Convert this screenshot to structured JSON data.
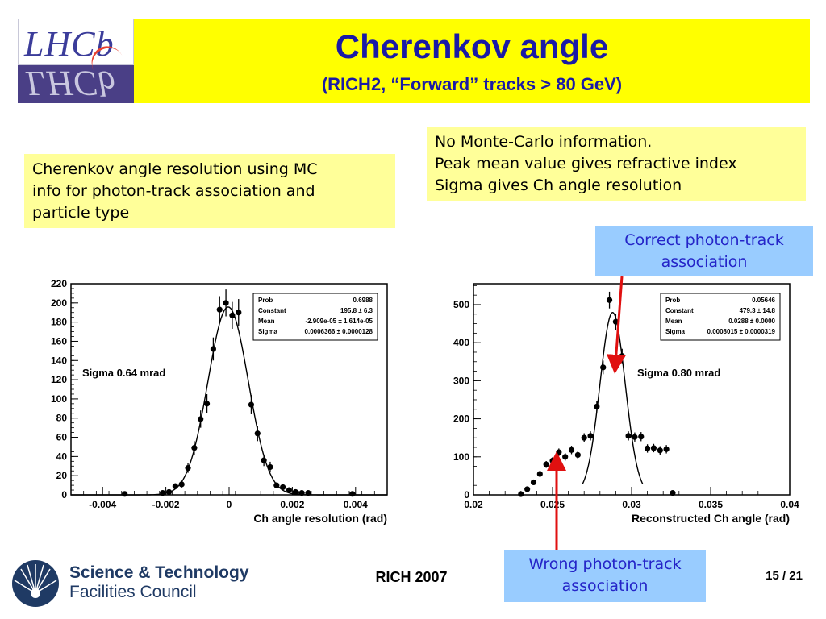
{
  "header": {
    "title": "Cherenkov angle",
    "subtitle": "(RICH2, “Forward” tracks > 80 GeV)",
    "logo_text": "LHCb"
  },
  "notes": {
    "left": [
      "Cherenkov angle resolution using MC",
      "info for photon-track association and",
      "particle type"
    ],
    "right": [
      "No Monte-Carlo information.",
      "Peak mean value gives refractive index",
      "Sigma gives Ch angle resolution"
    ]
  },
  "callouts": {
    "correct": [
      "Correct photon-track",
      "association"
    ],
    "wrong": [
      "Wrong photon-track",
      "association"
    ]
  },
  "footer": {
    "conference": "RICH 2007",
    "page": "15 / 21",
    "org_line1": "Science & Technology",
    "org_line2": "Facilities Council"
  },
  "colors": {
    "header_bg": "#ffff00",
    "title": "#1a1aa6",
    "note_bg": "#ffff99",
    "callout_bg": "#99ccff",
    "callout_text": "#2424c8",
    "arrow": "#e01010"
  },
  "chart_data": [
    {
      "type": "scatter",
      "xlabel": "Ch angle resolution (rad)",
      "ylabel": "",
      "xlim": [
        -0.005,
        0.005
      ],
      "ylim": [
        0,
        220
      ],
      "xticks": [
        -0.004,
        -0.002,
        0,
        0.002,
        0.004
      ],
      "xtick_labels": [
        "-0.004",
        "-0.002",
        "0",
        "0.002",
        "0.004"
      ],
      "yticks": [
        0,
        20,
        40,
        60,
        80,
        100,
        120,
        140,
        160,
        180,
        200,
        220
      ],
      "annotation": "Sigma 0.64 mrad",
      "stats": [
        {
          "label": "Prob",
          "value": "0.6988"
        },
        {
          "label": "Constant",
          "value": "195.8 ± 6.3"
        },
        {
          "label": "Mean",
          "value": "-2.909e-05 ± 1.614e-05"
        },
        {
          "label": "Sigma",
          "value": "0.0006366 ± 0.0000128"
        }
      ],
      "fit": {
        "constant": 195.8,
        "mean": -2.909e-05,
        "sigma": 0.0006366
      },
      "points": [
        {
          "x": -0.0033,
          "y": 1,
          "err": 1
        },
        {
          "x": -0.0021,
          "y": 2,
          "err": 1.5
        },
        {
          "x": -0.0019,
          "y": 3,
          "err": 1.7
        },
        {
          "x": -0.0017,
          "y": 9,
          "err": 3
        },
        {
          "x": -0.0015,
          "y": 11,
          "err": 3.3
        },
        {
          "x": -0.0013,
          "y": 28,
          "err": 5
        },
        {
          "x": -0.0011,
          "y": 49,
          "err": 7
        },
        {
          "x": -0.0009,
          "y": 79,
          "err": 9
        },
        {
          "x": -0.0007,
          "y": 95,
          "err": 10
        },
        {
          "x": -0.0005,
          "y": 152,
          "err": 12
        },
        {
          "x": -0.0003,
          "y": 193,
          "err": 14
        },
        {
          "x": -0.0001,
          "y": 200,
          "err": 14
        },
        {
          "x": 0.0001,
          "y": 187,
          "err": 14
        },
        {
          "x": 0.0003,
          "y": 190,
          "err": 14
        },
        {
          "x": 0.0007,
          "y": 94,
          "err": 10
        },
        {
          "x": 0.0009,
          "y": 64,
          "err": 8
        },
        {
          "x": 0.0011,
          "y": 36,
          "err": 6
        },
        {
          "x": 0.0013,
          "y": 29,
          "err": 5.5
        },
        {
          "x": 0.0015,
          "y": 10,
          "err": 3
        },
        {
          "x": 0.0017,
          "y": 8,
          "err": 3
        },
        {
          "x": 0.0019,
          "y": 5,
          "err": 2
        },
        {
          "x": 0.0021,
          "y": 3,
          "err": 1.7
        },
        {
          "x": 0.0023,
          "y": 2,
          "err": 1.5
        },
        {
          "x": 0.0025,
          "y": 2,
          "err": 1.5
        },
        {
          "x": 0.0039,
          "y": 1,
          "err": 1
        }
      ]
    },
    {
      "type": "scatter",
      "xlabel": "Reconstructed Ch angle (rad)",
      "ylabel": "",
      "xlim": [
        0.02,
        0.04
      ],
      "ylim": [
        0,
        555
      ],
      "xticks": [
        0.02,
        0.025,
        0.03,
        0.035,
        0.04
      ],
      "xtick_labels": [
        "0.02",
        "0.025",
        "0.03",
        "0.035",
        "0.04"
      ],
      "yticks": [
        0,
        100,
        200,
        300,
        400,
        500
      ],
      "annotation": "Sigma 0.80 mrad",
      "stats": [
        {
          "label": "Prob",
          "value": "0.05646"
        },
        {
          "label": "Constant",
          "value": "479.3 ± 14.8"
        },
        {
          "label": "Mean",
          "value": "0.0288 ± 0.0000"
        },
        {
          "label": "Sigma",
          "value": "0.0008015 ± 0.0000319"
        }
      ],
      "fit": {
        "constant": 479.3,
        "mean": 0.0288,
        "sigma": 0.0008015,
        "range": [
          0.0269,
          0.0307
        ]
      },
      "points": [
        {
          "x": 0.023,
          "y": 2,
          "err": 2
        },
        {
          "x": 0.0234,
          "y": 15,
          "err": 4
        },
        {
          "x": 0.0238,
          "y": 33,
          "err": 6
        },
        {
          "x": 0.0242,
          "y": 55,
          "err": 7
        },
        {
          "x": 0.0246,
          "y": 80,
          "err": 9
        },
        {
          "x": 0.025,
          "y": 90,
          "err": 9
        },
        {
          "x": 0.0254,
          "y": 112,
          "err": 10
        },
        {
          "x": 0.0258,
          "y": 100,
          "err": 10
        },
        {
          "x": 0.0262,
          "y": 118,
          "err": 11
        },
        {
          "x": 0.0266,
          "y": 105,
          "err": 10
        },
        {
          "x": 0.027,
          "y": 150,
          "err": 12
        },
        {
          "x": 0.0274,
          "y": 155,
          "err": 12
        },
        {
          "x": 0.0278,
          "y": 232,
          "err": 15
        },
        {
          "x": 0.0282,
          "y": 335,
          "err": 18
        },
        {
          "x": 0.0286,
          "y": 512,
          "err": 22
        },
        {
          "x": 0.029,
          "y": 455,
          "err": 21
        },
        {
          "x": 0.0294,
          "y": 365,
          "err": 19
        },
        {
          "x": 0.0298,
          "y": 155,
          "err": 12
        },
        {
          "x": 0.0302,
          "y": 152,
          "err": 12
        },
        {
          "x": 0.0306,
          "y": 153,
          "err": 12
        },
        {
          "x": 0.031,
          "y": 122,
          "err": 11
        },
        {
          "x": 0.0314,
          "y": 123,
          "err": 11
        },
        {
          "x": 0.0318,
          "y": 117,
          "err": 11
        },
        {
          "x": 0.0322,
          "y": 120,
          "err": 11
        },
        {
          "x": 0.0326,
          "y": 5,
          "err": 2
        }
      ]
    }
  ]
}
